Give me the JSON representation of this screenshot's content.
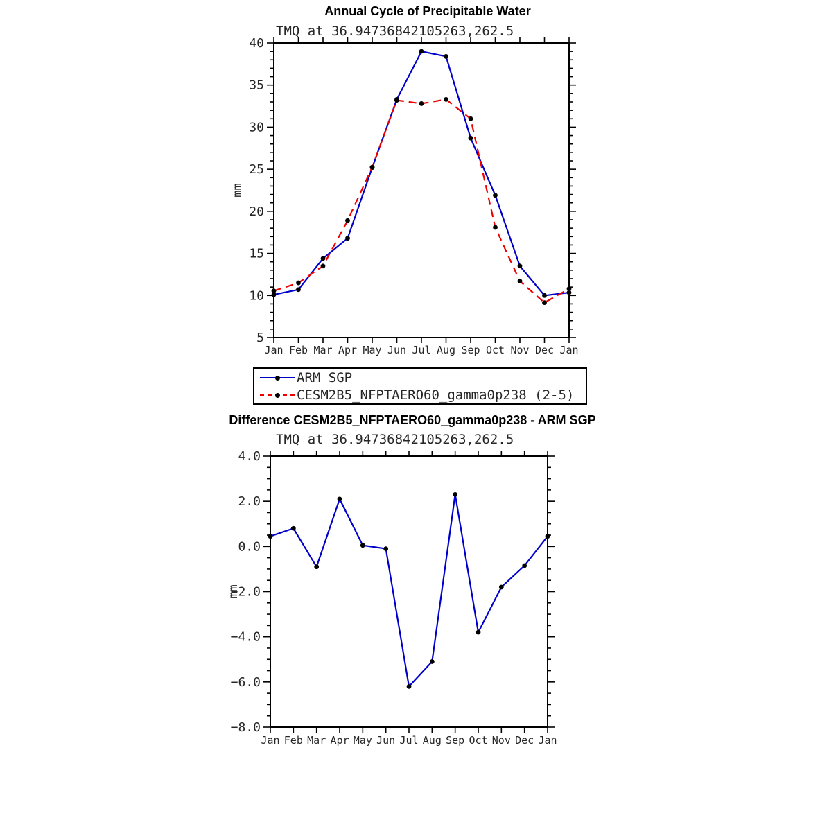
{
  "legend": {
    "items": [
      {
        "label": "ARM SGP",
        "color": "#0000cd",
        "dash": "solid"
      },
      {
        "label": "CESM2B5_NFPTAERO60_gamma0p238 (2-5)",
        "color": "#ee0000",
        "dash": "dashed"
      }
    ]
  },
  "chart_data": [
    {
      "type": "line",
      "title": "Annual Cycle of Precipitable Water",
      "subtitle": "TMQ at 36.94736842105263,262.5",
      "ylabel": "mm",
      "categories": [
        "Jan",
        "Feb",
        "Mar",
        "Apr",
        "May",
        "Jun",
        "Jul",
        "Aug",
        "Sep",
        "Oct",
        "Nov",
        "Dec",
        "Jan"
      ],
      "ylim": [
        5,
        40
      ],
      "yticks": [
        5,
        10,
        15,
        20,
        25,
        30,
        35,
        40
      ],
      "grid": false,
      "legend_position": "below",
      "series": [
        {
          "name": "ARM SGP",
          "color": "#0000cd",
          "style": "solid",
          "values": [
            10.1,
            10.7,
            14.4,
            16.8,
            25.2,
            33.3,
            39.0,
            38.4,
            28.7,
            21.9,
            13.5,
            10.0,
            10.35
          ]
        },
        {
          "name": "CESM2B5_NFPTAERO60_gamma0p238 (2-5)",
          "color": "#ee0000",
          "style": "dashed",
          "values": [
            10.55,
            11.5,
            13.5,
            18.9,
            25.25,
            33.2,
            32.8,
            33.3,
            31.0,
            18.1,
            11.7,
            9.15,
            10.8
          ]
        }
      ]
    },
    {
      "type": "line",
      "title": "Difference CESM2B5_NFPTAERO60_gamma0p238 - ARM SGP",
      "subtitle": "TMQ at 36.94736842105263,262.5",
      "ylabel": "mm",
      "categories": [
        "Jan",
        "Feb",
        "Mar",
        "Apr",
        "May",
        "Jun",
        "Jul",
        "Aug",
        "Sep",
        "Oct",
        "Nov",
        "Dec",
        "Jan"
      ],
      "ylim": [
        -8,
        4
      ],
      "yticks": [
        -8,
        -6,
        -4,
        -2,
        0,
        2,
        4
      ],
      "ytick_labels": [
        "−8.0",
        "−6.0",
        "−4.0",
        "−2.0",
        "0.0",
        "2.0",
        "4.0"
      ],
      "grid": false,
      "series": [
        {
          "name": "CESM2B5_NFPTAERO60_gamma0p238 minus ARM SGP",
          "color": "#0000cd",
          "style": "solid",
          "values": [
            0.45,
            0.8,
            -0.9,
            2.1,
            0.05,
            -0.1,
            -6.2,
            -5.1,
            2.3,
            -3.8,
            -1.8,
            -0.85,
            0.45
          ]
        }
      ]
    }
  ]
}
